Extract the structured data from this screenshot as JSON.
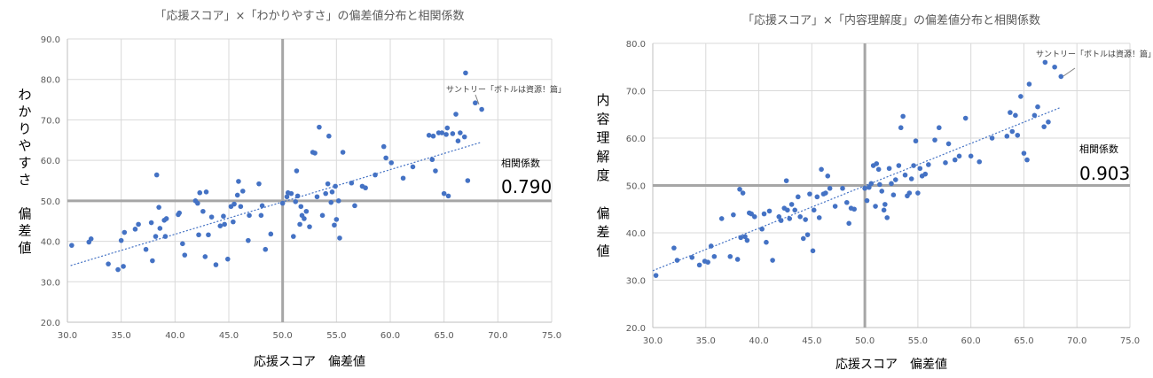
{
  "chart_data": [
    {
      "type": "scatter",
      "title": "「応援スコア」×「わかりやすさ」の偏差値分布と相関係数",
      "xlabel": "応援スコア　偏差値",
      "ylabel": [
        "わ",
        "か",
        "り",
        "や",
        "す",
        "さ",
        "",
        "偏",
        "差",
        "値"
      ],
      "xlim": [
        30,
        75
      ],
      "ylim": [
        20,
        90
      ],
      "xticks": [
        "30.0",
        "35.0",
        "40.0",
        "45.0",
        "50.0",
        "55.0",
        "60.0",
        "65.0",
        "70.0",
        "75.0"
      ],
      "yticks": [
        "20.0",
        "30.0",
        "40.0",
        "50.0",
        "60.0",
        "70.0",
        "80.0",
        "90.0"
      ],
      "xtick_values": [
        30,
        35,
        40,
        45,
        50,
        55,
        60,
        65,
        70,
        75
      ],
      "ytick_values": [
        20,
        30,
        40,
        50,
        60,
        70,
        80,
        90
      ],
      "grid": true,
      "ref_x": 50,
      "ref_y": 50,
      "trend": {
        "x": [
          30.3,
          68.5
        ],
        "y": [
          34.0,
          64.5
        ]
      },
      "corr_label": "相関係数",
      "corr_value": "0.790",
      "annotation": {
        "text": "サントリー「ボトルは資源！篇」",
        "point": [
          68.5,
          72.6
        ]
      },
      "points": [
        [
          30.4,
          39.0
        ],
        [
          32.0,
          39.8
        ],
        [
          32.2,
          40.6
        ],
        [
          33.8,
          34.4
        ],
        [
          34.7,
          33.0
        ],
        [
          35.0,
          40.2
        ],
        [
          35.2,
          33.8
        ],
        [
          35.3,
          42.2
        ],
        [
          36.3,
          43.0
        ],
        [
          36.6,
          44.2
        ],
        [
          37.3,
          38.0
        ],
        [
          37.8,
          44.6
        ],
        [
          37.9,
          35.2
        ],
        [
          38.2,
          41.2
        ],
        [
          38.3,
          56.4
        ],
        [
          38.5,
          48.4
        ],
        [
          38.6,
          43.2
        ],
        [
          39.0,
          45.2
        ],
        [
          39.1,
          41.2
        ],
        [
          39.2,
          45.6
        ],
        [
          40.3,
          46.6
        ],
        [
          40.4,
          47.0
        ],
        [
          40.7,
          39.4
        ],
        [
          40.9,
          36.6
        ],
        [
          41.9,
          50.0
        ],
        [
          42.1,
          49.4
        ],
        [
          42.2,
          41.6
        ],
        [
          42.3,
          52.0
        ],
        [
          42.6,
          47.4
        ],
        [
          42.8,
          36.2
        ],
        [
          42.9,
          52.2
        ],
        [
          43.1,
          41.6
        ],
        [
          43.4,
          46.0
        ],
        [
          43.8,
          34.2
        ],
        [
          44.2,
          43.8
        ],
        [
          44.5,
          46.2
        ],
        [
          44.6,
          44.2
        ],
        [
          44.9,
          35.6
        ],
        [
          45.2,
          48.6
        ],
        [
          45.4,
          44.8
        ],
        [
          45.5,
          49.2
        ],
        [
          45.8,
          51.4
        ],
        [
          45.9,
          54.8
        ],
        [
          46.1,
          48.6
        ],
        [
          46.3,
          52.4
        ],
        [
          46.8,
          40.2
        ],
        [
          46.9,
          46.4
        ],
        [
          47.8,
          54.2
        ],
        [
          48.0,
          46.4
        ],
        [
          48.1,
          48.8
        ],
        [
          48.4,
          38.0
        ],
        [
          48.9,
          41.8
        ],
        [
          50.0,
          49.4
        ],
        [
          50.4,
          51.0
        ],
        [
          50.5,
          52.0
        ],
        [
          50.8,
          51.8
        ],
        [
          51.0,
          41.2
        ],
        [
          51.2,
          49.8
        ],
        [
          51.3,
          57.4
        ],
        [
          51.4,
          51.2
        ],
        [
          51.6,
          44.2
        ],
        [
          51.7,
          48.6
        ],
        [
          51.8,
          46.4
        ],
        [
          52.0,
          45.6
        ],
        [
          52.2,
          47.4
        ],
        [
          52.5,
          43.6
        ],
        [
          52.8,
          62.0
        ],
        [
          53.0,
          61.8
        ],
        [
          53.2,
          51.0
        ],
        [
          53.4,
          68.2
        ],
        [
          53.7,
          46.4
        ],
        [
          54.0,
          51.8
        ],
        [
          54.2,
          54.2
        ],
        [
          54.3,
          66.0
        ],
        [
          54.5,
          49.6
        ],
        [
          54.6,
          52.2
        ],
        [
          54.8,
          44.0
        ],
        [
          54.9,
          53.6
        ],
        [
          55.0,
          45.4
        ],
        [
          55.2,
          50.0
        ],
        [
          55.3,
          40.8
        ],
        [
          55.6,
          62.0
        ],
        [
          56.4,
          54.4
        ],
        [
          56.7,
          48.8
        ],
        [
          57.4,
          53.6
        ],
        [
          57.7,
          53.2
        ],
        [
          58.6,
          56.4
        ],
        [
          59.4,
          63.4
        ],
        [
          59.6,
          60.6
        ],
        [
          60.1,
          59.4
        ],
        [
          61.2,
          55.6
        ],
        [
          62.1,
          58.4
        ],
        [
          63.6,
          66.2
        ],
        [
          63.9,
          60.2
        ],
        [
          64.0,
          66.0
        ],
        [
          64.2,
          57.4
        ],
        [
          64.5,
          66.8
        ],
        [
          64.8,
          66.8
        ],
        [
          65.0,
          51.8
        ],
        [
          65.2,
          66.4
        ],
        [
          65.3,
          68.0
        ],
        [
          65.4,
          51.2
        ],
        [
          65.8,
          66.6
        ],
        [
          66.1,
          71.4
        ],
        [
          66.3,
          64.8
        ],
        [
          66.5,
          66.8
        ],
        [
          66.9,
          65.8
        ],
        [
          67.0,
          81.6
        ],
        [
          67.2,
          55.0
        ],
        [
          67.9,
          74.2
        ],
        [
          68.5,
          72.6
        ]
      ]
    },
    {
      "type": "scatter",
      "title": "「応援スコア」×「内容理解度」の偏差値分布と相関係数",
      "xlabel": "応援スコア　偏差値",
      "ylabel": [
        "内",
        "容",
        "理",
        "解",
        "度",
        "",
        "偏",
        "差",
        "値"
      ],
      "xlim": [
        30,
        75
      ],
      "ylim": [
        20,
        80
      ],
      "xticks": [
        "30.0",
        "35.0",
        "40.0",
        "45.0",
        "50.0",
        "55.0",
        "60.0",
        "65.0",
        "70.0",
        "75.0"
      ],
      "yticks": [
        "20.0",
        "30.0",
        "40.0",
        "50.0",
        "60.0",
        "70.0",
        "80.0"
      ],
      "xtick_values": [
        30,
        35,
        40,
        45,
        50,
        55,
        60,
        65,
        70,
        75
      ],
      "ytick_values": [
        20,
        30,
        40,
        50,
        60,
        70,
        80
      ],
      "grid": true,
      "ref_x": 50,
      "ref_y": 50,
      "trend": {
        "x": [
          30.0,
          68.5
        ],
        "y": [
          32.0,
          66.5
        ]
      },
      "corr_label": "相関係数",
      "corr_value": "0.903",
      "annotation": {
        "text": "サントリー「ボトルは資源！篇」",
        "point": [
          68.5,
          73.0
        ]
      },
      "points": [
        [
          30.3,
          31.0
        ],
        [
          32.0,
          36.8
        ],
        [
          32.3,
          34.2
        ],
        [
          33.7,
          34.8
        ],
        [
          34.4,
          33.2
        ],
        [
          34.9,
          34.0
        ],
        [
          35.2,
          33.8
        ],
        [
          35.5,
          37.2
        ],
        [
          35.8,
          35.0
        ],
        [
          36.5,
          43.0
        ],
        [
          37.3,
          35.0
        ],
        [
          37.6,
          43.8
        ],
        [
          38.0,
          34.4
        ],
        [
          38.2,
          49.2
        ],
        [
          38.3,
          39.0
        ],
        [
          38.5,
          48.4
        ],
        [
          38.7,
          39.2
        ],
        [
          38.9,
          38.4
        ],
        [
          39.1,
          44.2
        ],
        [
          39.3,
          44.0
        ],
        [
          39.6,
          43.4
        ],
        [
          40.3,
          40.8
        ],
        [
          40.5,
          44.0
        ],
        [
          40.7,
          38.0
        ],
        [
          41.0,
          44.6
        ],
        [
          41.3,
          34.2
        ],
        [
          41.9,
          43.4
        ],
        [
          42.1,
          42.6
        ],
        [
          42.4,
          45.2
        ],
        [
          42.6,
          51.0
        ],
        [
          42.7,
          44.8
        ],
        [
          42.9,
          43.0
        ],
        [
          43.1,
          46.0
        ],
        [
          43.4,
          44.8
        ],
        [
          43.7,
          47.6
        ],
        [
          43.9,
          43.4
        ],
        [
          44.2,
          38.8
        ],
        [
          44.4,
          42.8
        ],
        [
          44.6,
          39.6
        ],
        [
          44.8,
          48.2
        ],
        [
          45.1,
          36.2
        ],
        [
          45.2,
          44.8
        ],
        [
          45.5,
          47.6
        ],
        [
          45.7,
          43.2
        ],
        [
          45.9,
          53.4
        ],
        [
          46.1,
          48.2
        ],
        [
          46.3,
          48.4
        ],
        [
          46.5,
          52.0
        ],
        [
          46.7,
          49.4
        ],
        [
          47.2,
          45.6
        ],
        [
          47.9,
          49.4
        ],
        [
          48.3,
          46.4
        ],
        [
          48.5,
          42.0
        ],
        [
          48.7,
          45.2
        ],
        [
          49.0,
          45.0
        ],
        [
          50.0,
          49.4
        ],
        [
          50.2,
          46.8
        ],
        [
          50.4,
          49.6
        ],
        [
          50.6,
          50.4
        ],
        [
          50.8,
          54.2
        ],
        [
          51.0,
          45.6
        ],
        [
          51.1,
          54.6
        ],
        [
          51.3,
          53.4
        ],
        [
          51.4,
          50.2
        ],
        [
          51.6,
          48.8
        ],
        [
          51.8,
          44.8
        ],
        [
          51.9,
          46.0
        ],
        [
          52.1,
          43.2
        ],
        [
          52.3,
          53.6
        ],
        [
          52.5,
          50.4
        ],
        [
          52.7,
          48.0
        ],
        [
          52.9,
          51.2
        ],
        [
          53.2,
          54.2
        ],
        [
          53.4,
          62.2
        ],
        [
          53.6,
          64.6
        ],
        [
          53.8,
          52.2
        ],
        [
          54.0,
          47.8
        ],
        [
          54.2,
          48.4
        ],
        [
          54.4,
          51.4
        ],
        [
          54.6,
          54.2
        ],
        [
          54.8,
          59.4
        ],
        [
          55.0,
          48.4
        ],
        [
          55.2,
          53.6
        ],
        [
          55.4,
          52.0
        ],
        [
          55.7,
          52.4
        ],
        [
          56.0,
          54.4
        ],
        [
          56.6,
          59.6
        ],
        [
          57.0,
          62.2
        ],
        [
          57.6,
          54.8
        ],
        [
          57.9,
          58.8
        ],
        [
          58.5,
          55.4
        ],
        [
          58.9,
          56.2
        ],
        [
          59.5,
          64.2
        ],
        [
          60.0,
          56.2
        ],
        [
          60.8,
          55.0
        ],
        [
          62.0,
          60.0
        ],
        [
          63.4,
          60.4
        ],
        [
          63.7,
          65.4
        ],
        [
          63.9,
          61.4
        ],
        [
          64.2,
          64.8
        ],
        [
          64.4,
          60.6
        ],
        [
          64.7,
          68.8
        ],
        [
          65.0,
          56.8
        ],
        [
          65.3,
          55.4
        ],
        [
          65.5,
          71.4
        ],
        [
          66.0,
          64.8
        ],
        [
          66.3,
          66.6
        ],
        [
          66.9,
          62.4
        ],
        [
          67.0,
          76.0
        ],
        [
          67.3,
          63.4
        ],
        [
          67.9,
          75.0
        ],
        [
          68.5,
          73.0
        ]
      ]
    }
  ]
}
